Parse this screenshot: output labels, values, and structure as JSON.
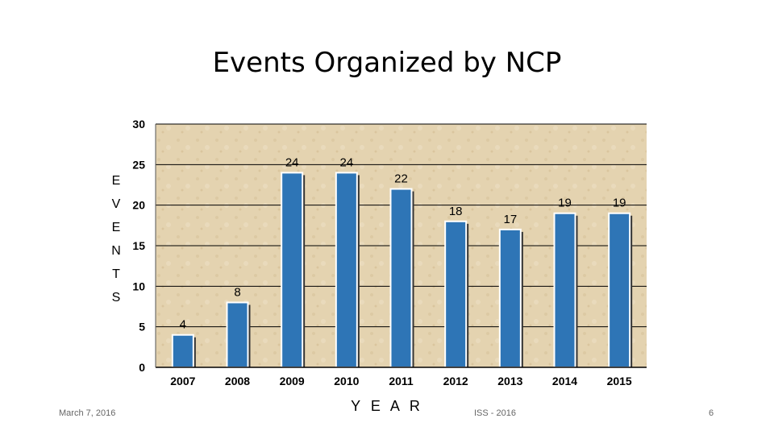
{
  "slide": {
    "date": "March 7, 2016",
    "footer_center": "ISS - 2016",
    "page_number": "6"
  },
  "chart_data": {
    "type": "bar",
    "title": "Events Organized by NCP",
    "xlabel": "Y E A R",
    "ylabel_letters": [
      "E",
      "V",
      "E",
      "N",
      "T",
      "S"
    ],
    "categories": [
      "2007",
      "2008",
      "2009",
      "2010",
      "2011",
      "2012",
      "2013",
      "2014",
      "2015"
    ],
    "values": [
      4,
      8,
      24,
      24,
      22,
      18,
      17,
      19,
      19
    ],
    "ylim": [
      0,
      30
    ],
    "yticks": [
      0,
      5,
      10,
      15,
      20,
      25,
      30
    ],
    "grid": true,
    "legend": "none",
    "colors": {
      "bar": "#2E75B6",
      "plot_background": "#E4D3B0",
      "gridline": "#000000"
    }
  }
}
